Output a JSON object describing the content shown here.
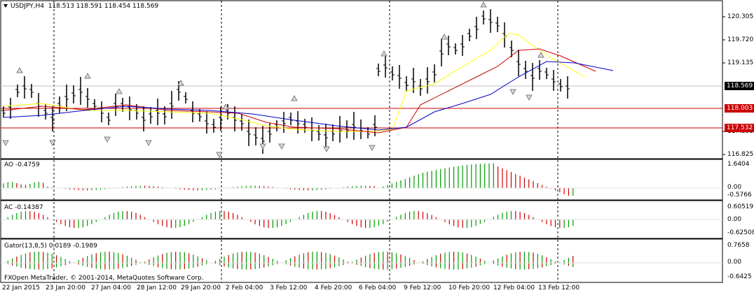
{
  "header": {
    "symbol_tf": "USDJPY,H4",
    "ohlc": "118.513 118.591 118.454 118.569"
  },
  "price_axis": [
    "120.305",
    "119.720",
    "119.135",
    "117.395",
    "116.825"
  ],
  "tags": {
    "current": {
      "text": "118.569",
      "color": "#000000"
    },
    "resistance": {
      "text": "118.003",
      "color": "#cc0000"
    },
    "support": {
      "text": "117.532",
      "color": "#cc0000"
    }
  },
  "indicators": {
    "ao": {
      "label": "AO -0.4759",
      "top": "1.6404",
      "mid": "0.00",
      "bottom": "-0.5766"
    },
    "ac": {
      "label": "AC -0.14387",
      "top": "0.60519",
      "mid": "0.00",
      "bottom": "-0.62508"
    },
    "gator": {
      "label": "Gator(13,8,5) 0.0189 -0.1989",
      "top": "0.7658",
      "mid": "0.00",
      "bottom": "-0.6425"
    }
  },
  "copyright": "FXOpen MetaTrader, © 2001-2014, MetaQuotes Software Corp.",
  "time_axis": [
    "22 Jan 2015",
    "23 Jan 20:00",
    "27 Jan 04:00",
    "28 Jan 12:00",
    "29 Jan 20:00",
    "2 Feb 04:00",
    "3 Feb 12:00",
    "4 Feb 20:00",
    "6 Feb 04:00",
    "9 Feb 12:00",
    "10 Feb 20:00",
    "12 Feb 04:00",
    "13 Feb 12:00"
  ],
  "colors": {
    "bull": "#009900",
    "bear": "#cc0000",
    "ma_blue": "#0000cc",
    "ma_red": "#cc0000",
    "ma_yellow": "#ffff00",
    "grid": "#000000"
  }
}
